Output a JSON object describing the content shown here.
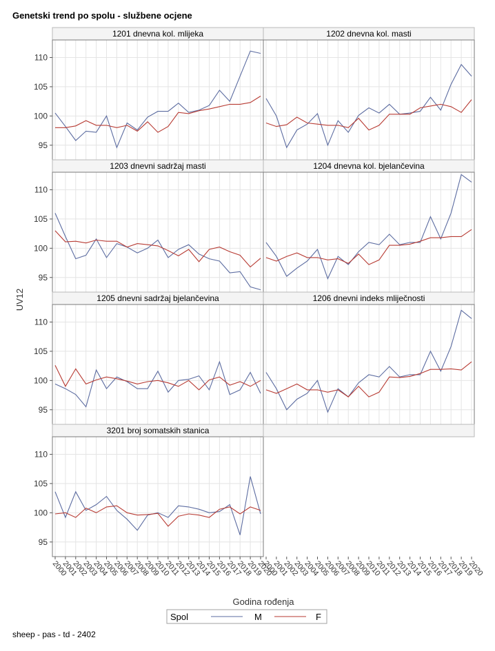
{
  "title": "Genetski trend po spolu - službene ocjene",
  "footer": "sheep - pas - td - 2402",
  "chart_data": {
    "type": "line",
    "ylabel": "UV12",
    "xlabel": "Godina rođenja",
    "ylim": [
      92.5,
      113
    ],
    "yticks": [
      95,
      100,
      105,
      110
    ],
    "x": [
      2000,
      2001,
      2002,
      2003,
      2004,
      2005,
      2006,
      2007,
      2008,
      2009,
      2010,
      2011,
      2012,
      2013,
      2014,
      2015,
      2016,
      2017,
      2018,
      2019,
      2020
    ],
    "legend": {
      "title": "Spol",
      "placement": "bottom-center",
      "entries": [
        {
          "name": "M",
          "color": "#5b6ba0"
        },
        {
          "name": "F",
          "color": "#b73a32"
        }
      ]
    },
    "panels": [
      {
        "label": "1201 dnevna kol. mlijeka",
        "series": [
          {
            "name": "M",
            "values": [
              100.5,
              98.2,
              95.8,
              97.4,
              97.2,
              100.0,
              94.6,
              98.8,
              97.6,
              99.8,
              100.8,
              100.8,
              102.2,
              100.6,
              101.0,
              101.8,
              104.4,
              102.5,
              106.8,
              111.1,
              110.7
            ]
          },
          {
            "name": "F",
            "values": [
              98.0,
              98.0,
              98.3,
              99.2,
              98.4,
              98.4,
              98.0,
              98.4,
              97.4,
              99.0,
              97.2,
              98.2,
              100.6,
              100.4,
              100.9,
              101.2,
              101.6,
              102.0,
              102.0,
              102.3,
              103.4
            ]
          }
        ]
      },
      {
        "label": "1202 dnevna kol. masti",
        "series": [
          {
            "name": "M",
            "values": [
              103.0,
              100.0,
              94.6,
              97.6,
              98.6,
              100.4,
              95.0,
              99.2,
              97.2,
              100.1,
              101.4,
              100.5,
              102.0,
              100.3,
              100.5,
              100.8,
              103.2,
              101.0,
              105.4,
              108.8,
              106.8
            ]
          },
          {
            "name": "F",
            "values": [
              98.8,
              98.2,
              98.5,
              99.8,
              98.8,
              98.6,
              98.4,
              98.4,
              98.0,
              99.6,
              97.6,
              98.4,
              100.3,
              100.3,
              100.3,
              101.4,
              101.7,
              102.0,
              101.6,
              100.6,
              102.8
            ]
          }
        ]
      },
      {
        "label": "1203 dnevni sadržaj masti",
        "series": [
          {
            "name": "M",
            "values": [
              106.0,
              102.0,
              98.2,
              98.8,
              101.6,
              98.4,
              100.8,
              100.2,
              99.2,
              100.0,
              101.4,
              98.4,
              99.8,
              100.6,
              99.0,
              98.2,
              97.8,
              95.8,
              96.0,
              93.4,
              92.9
            ]
          },
          {
            "name": "F",
            "values": [
              103.0,
              101.1,
              101.2,
              100.9,
              101.4,
              101.2,
              101.2,
              100.2,
              100.8,
              100.6,
              100.4,
              99.6,
              98.7,
              99.8,
              97.7,
              99.8,
              100.2,
              99.4,
              98.8,
              96.8,
              98.3
            ]
          }
        ]
      },
      {
        "label": "1204 dnevna kol. bjelančevina",
        "series": [
          {
            "name": "M",
            "values": [
              101.0,
              98.6,
              95.2,
              96.6,
              97.8,
              99.8,
              94.8,
              98.6,
              97.2,
              99.4,
              101.0,
              100.6,
              102.4,
              100.6,
              101.0,
              101.0,
              105.4,
              101.6,
              106.0,
              112.6,
              111.3
            ]
          },
          {
            "name": "F",
            "values": [
              98.4,
              97.8,
              98.6,
              99.2,
              98.4,
              98.4,
              98.0,
              98.2,
              97.4,
              99.0,
              97.2,
              98.0,
              100.5,
              100.5,
              100.7,
              101.2,
              101.8,
              101.8,
              102.0,
              102.0,
              103.2
            ]
          }
        ]
      },
      {
        "label": "1205 dnevni sadržaj bjelančevina",
        "series": [
          {
            "name": "M",
            "values": [
              99.4,
              98.6,
              97.6,
              95.5,
              101.8,
              98.6,
              100.6,
              99.8,
              98.6,
              98.6,
              101.6,
              98.0,
              100.0,
              100.2,
              100.8,
              98.4,
              103.2,
              97.6,
              98.4,
              101.4,
              97.8
            ]
          },
          {
            "name": "F",
            "values": [
              102.6,
              99.0,
              102.0,
              99.4,
              100.1,
              100.6,
              100.3,
              99.9,
              99.4,
              99.8,
              100.0,
              99.6,
              99.0,
              100.0,
              98.4,
              100.1,
              100.6,
              99.2,
              99.8,
              99.0,
              100.0
            ]
          }
        ]
      },
      {
        "label": "1206 dnevni indeks mliječnosti",
        "series": [
          {
            "name": "M",
            "values": [
              101.4,
              98.6,
              95.0,
              96.8,
              97.8,
              100.0,
              94.6,
              98.6,
              97.2,
              99.6,
              101.0,
              100.6,
              102.4,
              100.6,
              101.0,
              101.0,
              105.0,
              101.6,
              105.8,
              112.0,
              110.6
            ]
          },
          {
            "name": "F",
            "values": [
              98.4,
              97.8,
              98.6,
              99.4,
              98.4,
              98.4,
              98.0,
              98.4,
              97.2,
              99.0,
              97.2,
              98.0,
              100.6,
              100.5,
              100.7,
              101.2,
              101.9,
              101.9,
              102.0,
              101.8,
              103.2
            ]
          }
        ]
      },
      {
        "label": "3201 broj somatskih stanica",
        "series": [
          {
            "name": "M",
            "values": [
              103.6,
              99.2,
              103.6,
              100.4,
              101.4,
              102.8,
              100.4,
              98.9,
              97.0,
              99.6,
              100.0,
              99.2,
              101.2,
              101.0,
              100.6,
              100.0,
              100.2,
              101.4,
              96.2,
              106.2,
              99.8
            ]
          },
          {
            "name": "F",
            "values": [
              99.8,
              100.0,
              99.2,
              100.8,
              100.0,
              101.0,
              101.2,
              100.0,
              99.6,
              99.7,
              99.9,
              97.7,
              99.4,
              99.8,
              99.6,
              99.2,
              100.6,
              101.0,
              99.8,
              101.0,
              100.4
            ]
          }
        ]
      }
    ]
  }
}
